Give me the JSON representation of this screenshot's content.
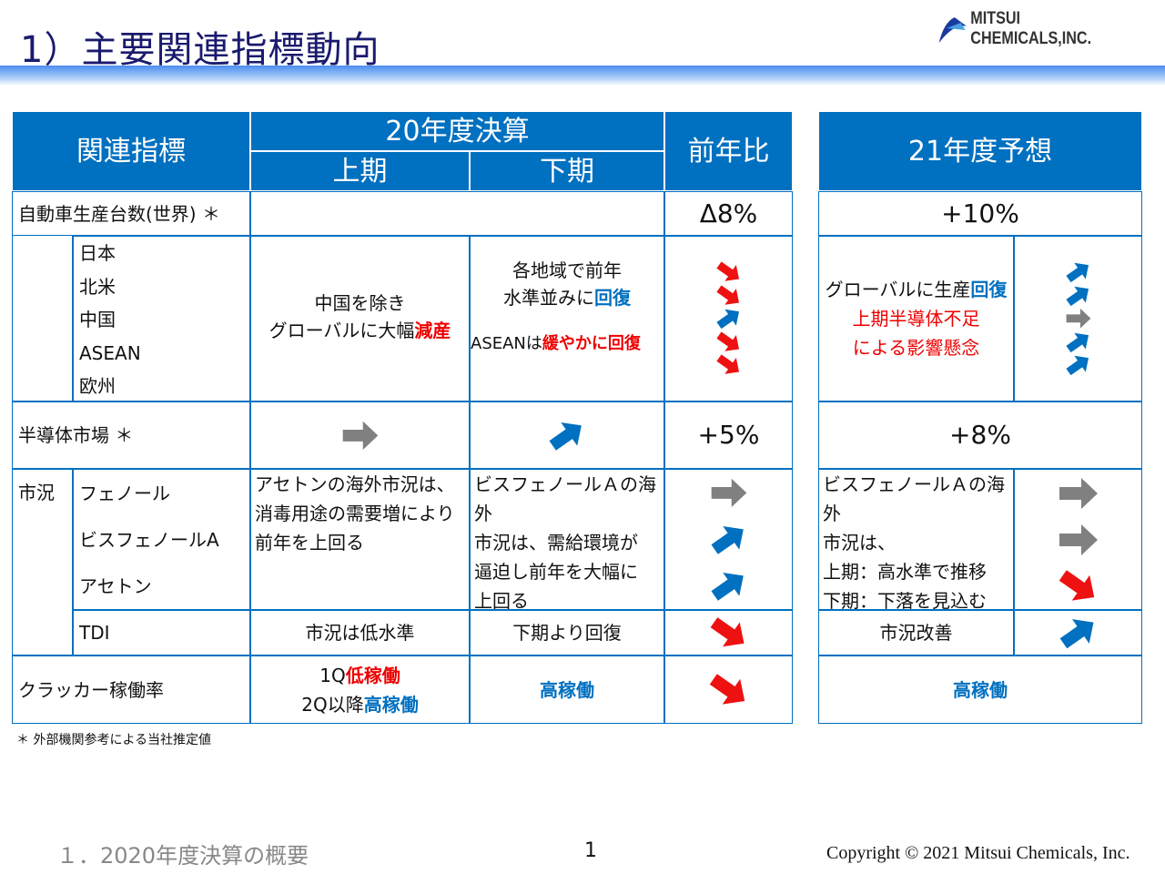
{
  "title": "1）主要関連指標動向",
  "logo": "MITSUI CHEMICALS,INC.",
  "header": {
    "indicator": "関連指標",
    "fy20": "20年度決算",
    "h1": "上期",
    "h2": "下期",
    "yoy": "前年比",
    "fy21": "21年度予想"
  },
  "auto": {
    "label": "自動車生産台数(世界) ＊",
    "yoy": "Δ8%",
    "fy21": "+10%",
    "regions": [
      "日本",
      "北米",
      "中国",
      "ASEAN",
      "欧州"
    ],
    "h1": [
      "中国を除き",
      "グローバルに大幅",
      "減産"
    ],
    "h2": [
      "各地域で前年",
      "水準並みに",
      "回復",
      "ASEANは",
      "緩やかに回復"
    ],
    "yoy_arrows": [
      "down",
      "down",
      "up",
      "down",
      "down"
    ],
    "fy21_text": [
      "グローバルに生産",
      "回復",
      "上期半導体不足",
      "による影響懸念"
    ],
    "fy21_arrows": [
      "up",
      "up",
      "flat",
      "up",
      "up"
    ]
  },
  "semi": {
    "label": "半導体市場 ＊",
    "h1_arrow": "flat",
    "h2_arrow": "up",
    "yoy": "+5%",
    "fy21": "+8%"
  },
  "market": {
    "label": "市況",
    "items": [
      "フェノール",
      "ビスフェノールA",
      "アセトン"
    ],
    "h1": [
      "アセトンの海外市況は、",
      "消毒用途の需要増により",
      "前年を上回る"
    ],
    "h2": [
      "ビスフェノールＡの海外",
      "市況は、需給環境が",
      "逼迫し前年を大幅に",
      "上回る"
    ],
    "yoy_arrows": [
      "flat",
      "up",
      "up"
    ],
    "fy21_text": [
      "ビスフェノールＡの海外",
      "市況は、",
      "上期：高水準で推移",
      "下期：下落を見込む"
    ],
    "fy21_arrows": [
      "flat",
      "flat",
      "down"
    ]
  },
  "tdi": {
    "label": "TDI",
    "h1": "市況は低水準",
    "h2": "下期より回復",
    "yoy_arrow": "down",
    "fy21": "市況改善",
    "fy21_arrow": "up"
  },
  "cracker": {
    "label": "クラッカー稼働率",
    "h1a": "1Q",
    "h1b": "低稼働",
    "h1c": "2Q以降",
    "h1d": "高稼働",
    "h2": "高稼働",
    "yoy_arrow": "down",
    "fy21": "高稼働"
  },
  "footer": {
    "note": "＊ 外部機関参考による当社推定値",
    "section": "１．2020年度決算の概要",
    "page": "1",
    "copyright": "Copyright © 2021 Mitsui Chemicals, Inc."
  },
  "colors": {
    "up": "#0070c0",
    "down": "#ee1111",
    "flat": "#808080"
  }
}
